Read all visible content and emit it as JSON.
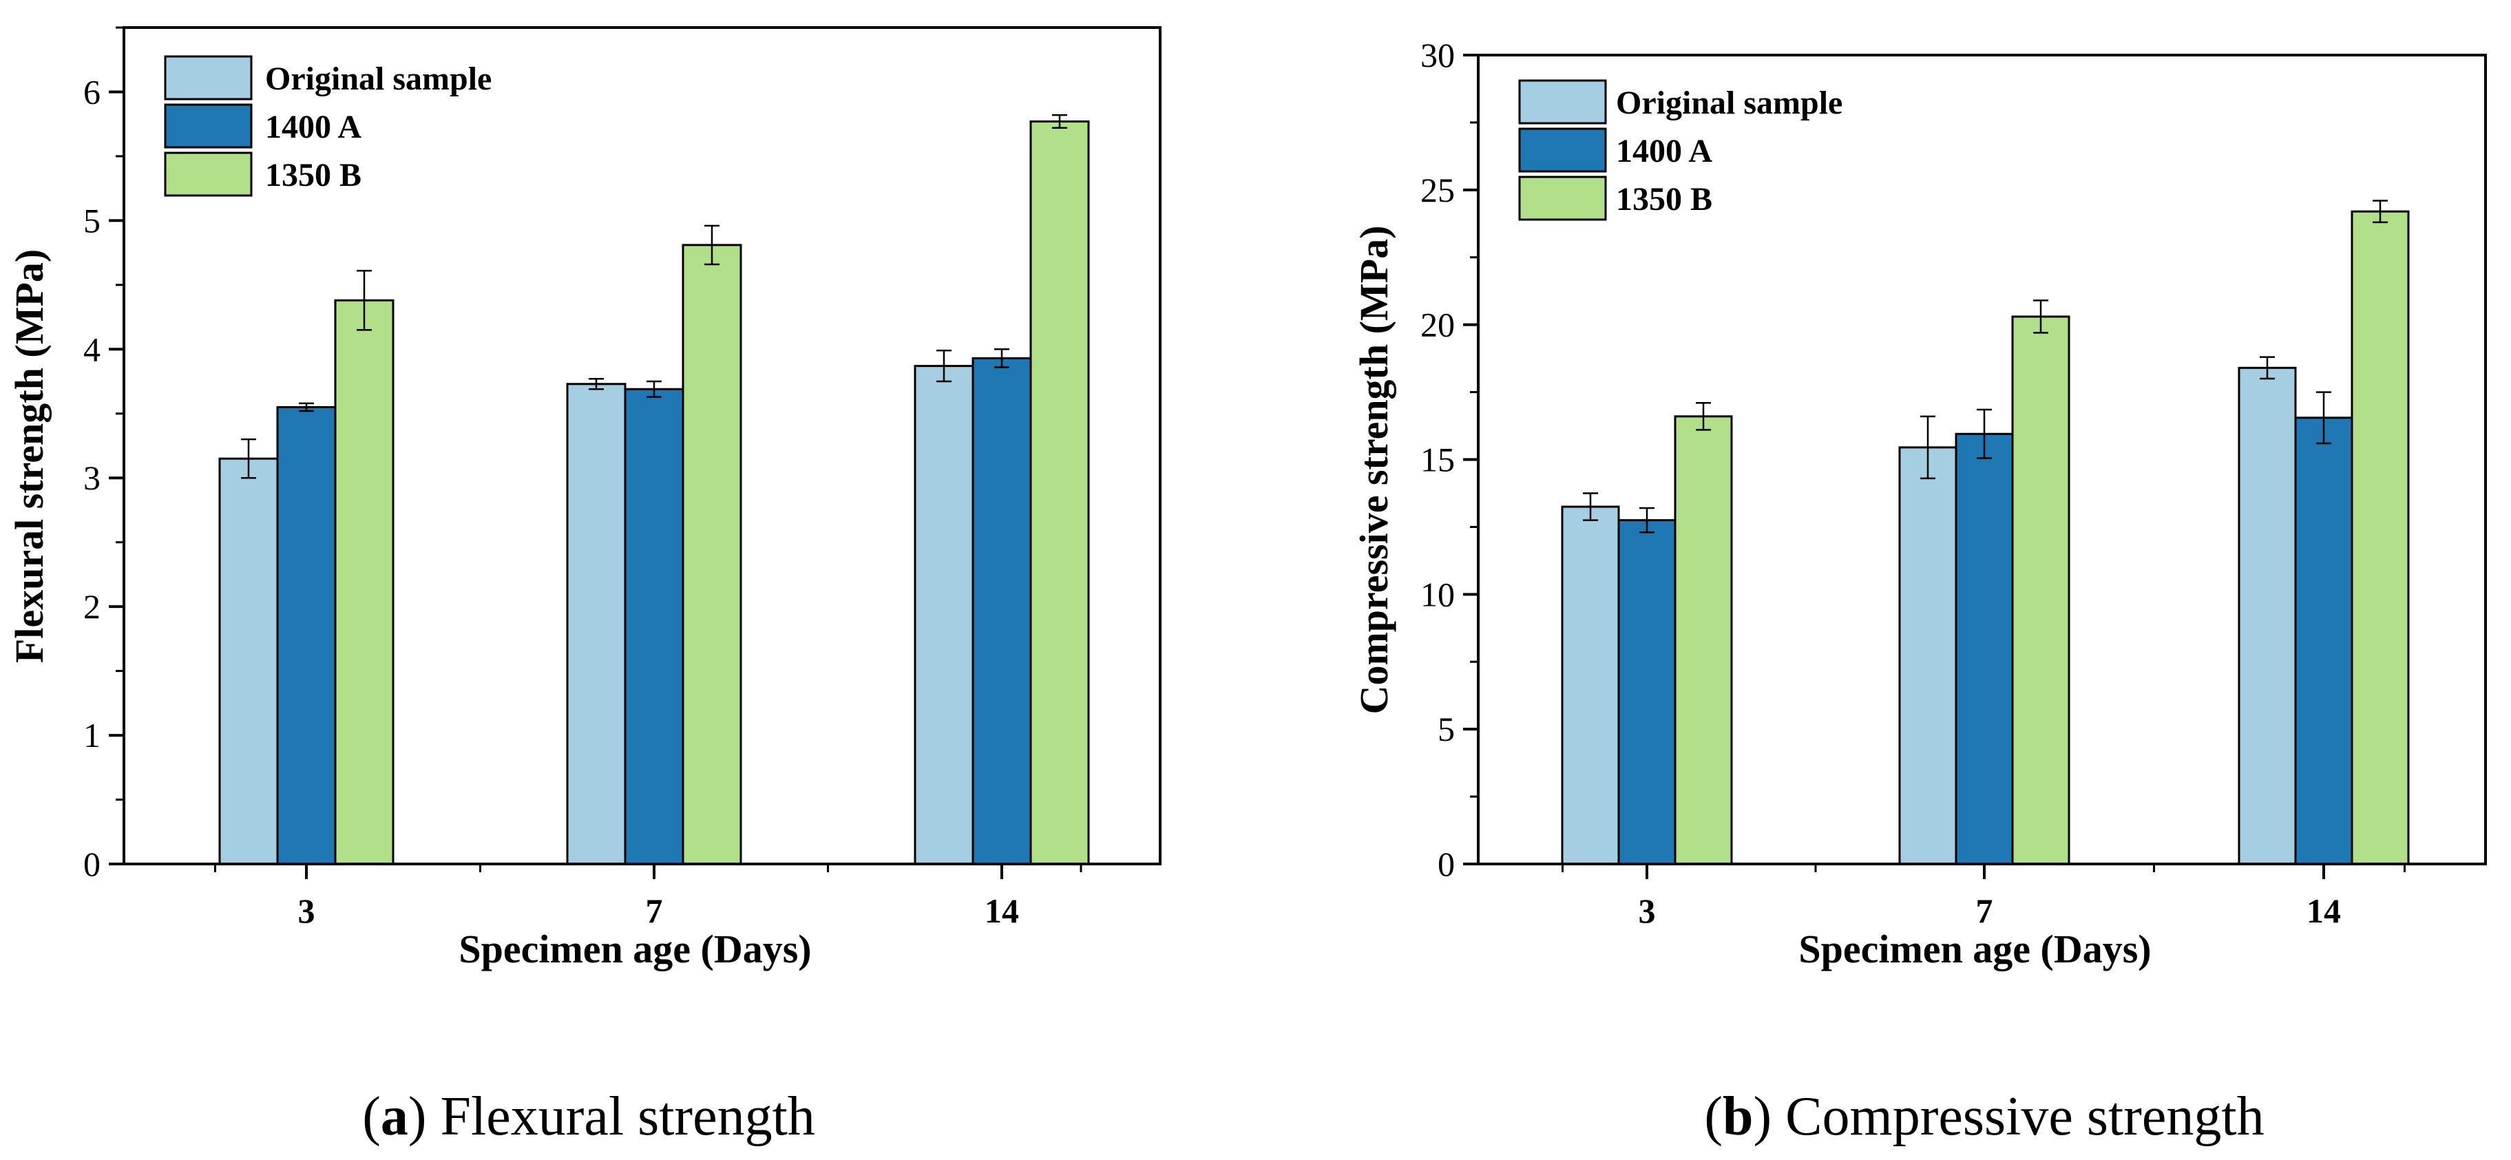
{
  "colors": {
    "original": "#a6cee3",
    "a1400": "#1f78b4",
    "b1350": "#b2df8a",
    "axis": "#000000"
  },
  "chart_data": [
    {
      "id": "a",
      "type": "bar",
      "caption_letter": "a",
      "caption_text": " Flexural strength",
      "xlabel": "Specimen age (Days)",
      "ylabel": "Flexural strength (MPa)",
      "categories": [
        "3",
        "7",
        "14"
      ],
      "ylim": [
        0,
        6.5
      ],
      "yticks": [
        0,
        1,
        2,
        3,
        4,
        5,
        6
      ],
      "ytick_labels": [
        "0",
        "1",
        "2",
        "3",
        "4",
        "5",
        "6"
      ],
      "legend_position": "top-left",
      "series": [
        {
          "name": "Original sample",
          "color_key": "original",
          "values": [
            3.15,
            3.73,
            3.87
          ],
          "errors": [
            0.15,
            0.04,
            0.12
          ]
        },
        {
          "name": "1400 A",
          "color_key": "a1400",
          "values": [
            3.55,
            3.69,
            3.93
          ],
          "errors": [
            0.03,
            0.06,
            0.07
          ]
        },
        {
          "name": "1350 B",
          "color_key": "b1350",
          "values": [
            4.38,
            4.81,
            5.77
          ],
          "errors": [
            0.23,
            0.15,
            0.05
          ]
        }
      ]
    },
    {
      "id": "b",
      "type": "bar",
      "caption_letter": "b",
      "caption_text": " Compressive strength",
      "xlabel": "Specimen age (Days)",
      "ylabel": "Compressive strength (MPa)",
      "categories": [
        "3",
        "7",
        "14"
      ],
      "ylim": [
        0,
        30
      ],
      "yticks": [
        0,
        5,
        10,
        15,
        20,
        25,
        30
      ],
      "ytick_labels": [
        "0",
        "5",
        "10",
        "15",
        "20",
        "25",
        "30"
      ],
      "legend_position": "top-left",
      "series": [
        {
          "name": "Original sample",
          "color_key": "original",
          "values": [
            13.25,
            15.45,
            18.4
          ],
          "errors": [
            0.5,
            1.15,
            0.4
          ]
        },
        {
          "name": "1400 A",
          "color_key": "a1400",
          "values": [
            12.75,
            15.95,
            16.55
          ],
          "errors": [
            0.45,
            0.9,
            0.95
          ]
        },
        {
          "name": "1350 B",
          "color_key": "b1350",
          "values": [
            16.6,
            20.3,
            24.2
          ],
          "errors": [
            0.5,
            0.6,
            0.4
          ]
        }
      ]
    }
  ]
}
